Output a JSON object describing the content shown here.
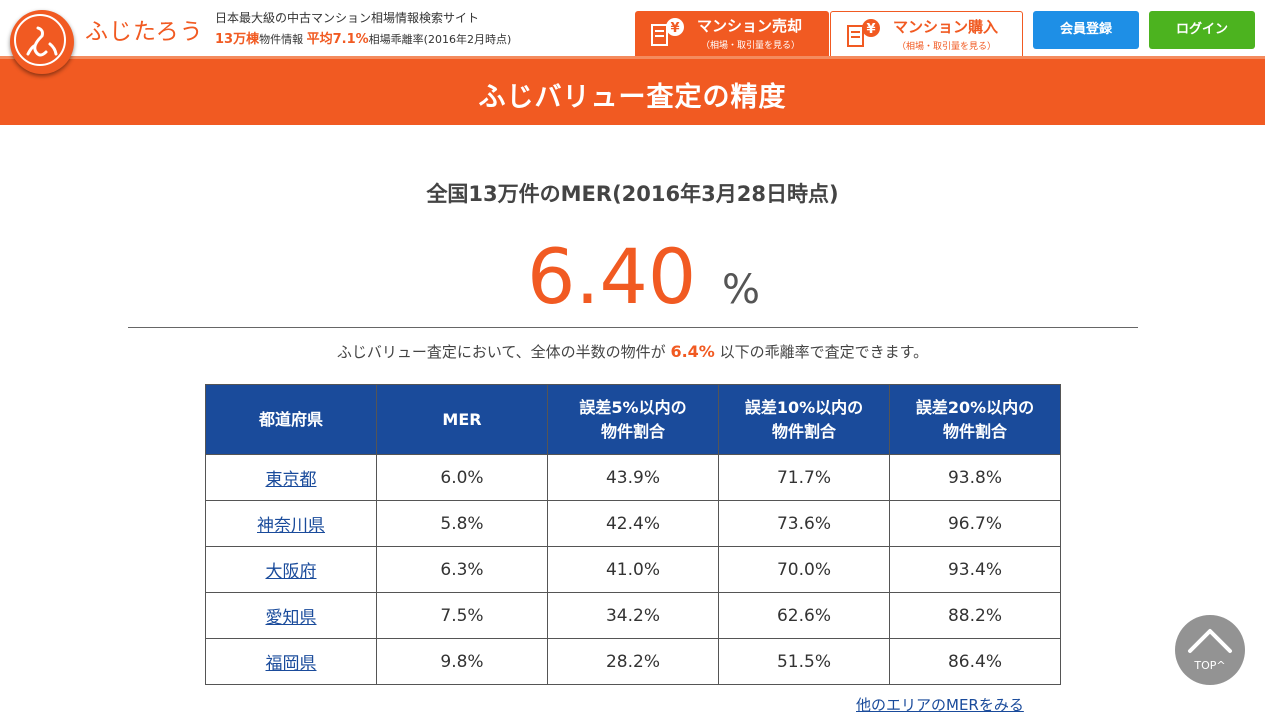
{
  "header": {
    "brand_name": "ふじたろう",
    "tagline": "日本最大級の中古マンション相場情報検索サイト",
    "stats_count": "13万棟",
    "stats_count_suffix": "物件情報",
    "stats_avg": "平均7.1%",
    "stats_avg_suffix": "相場乖離率(2016年2月時点)",
    "nav_sell": {
      "label": "マンション売却",
      "sub": "（相場・取引量を見る）"
    },
    "nav_buy": {
      "label": "マンション購入",
      "sub": "（相場・取引量を見る）"
    },
    "register_label": "会員登録",
    "login_label": "ログイン"
  },
  "page_title": "ふじバリュー査定の精度",
  "mer": {
    "heading": "全国13万件のMER(2016年3月28日時点)",
    "value": "6.40",
    "unit": "%",
    "note_prefix": "ふじバリュー査定において、全体の半数の物件が",
    "note_value": "6.4%",
    "note_suffix": "以下の乖離率で査定できます。"
  },
  "table": {
    "headers": [
      "都道府県",
      "MER",
      "誤差5%以内の\n物件割合",
      "誤差10%以内の\n物件割合",
      "誤差20%以内の\n物件割合"
    ],
    "rows": [
      [
        "東京都",
        "6.0%",
        "43.9%",
        "71.7%",
        "93.8%"
      ],
      [
        "神奈川県",
        "5.8%",
        "42.4%",
        "73.6%",
        "96.7%"
      ],
      [
        "大阪府",
        "6.3%",
        "41.0%",
        "70.0%",
        "93.4%"
      ],
      [
        "愛知県",
        "7.5%",
        "34.2%",
        "62.6%",
        "88.2%"
      ],
      [
        "福岡県",
        "9.8%",
        "28.2%",
        "51.5%",
        "86.4%"
      ]
    ]
  },
  "more_link": "他のエリアのMERをみる",
  "top_button": "TOP^",
  "colors": {
    "accent": "#f15a22",
    "table_header": "#1a4b9b",
    "register": "#1e8fe6",
    "login": "#4cb31f"
  }
}
